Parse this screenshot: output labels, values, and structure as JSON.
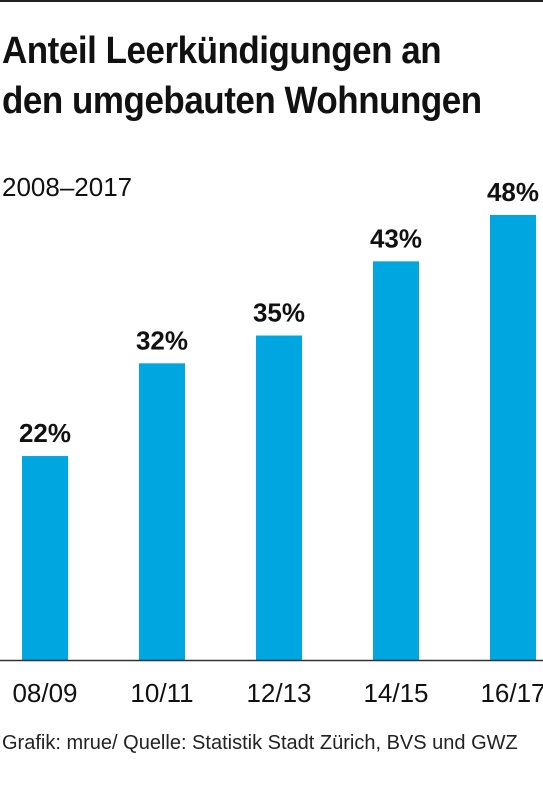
{
  "title": "Anteil Leerkündigungen an den umgebauten Wohnungen",
  "subtitle": "2008–2017",
  "footer": "Grafik: mrue/ Quelle: Statistik Stadt Zürich, BVS und GWZ",
  "colors": {
    "bar": "#00a6e0",
    "baseline": "#333333",
    "text": "#111111"
  },
  "chart_data": {
    "type": "bar",
    "title": "Anteil Leerkündigungen an den umgebauten Wohnungen",
    "subtitle": "2008–2017",
    "categories": [
      "08/09",
      "10/11",
      "12/13",
      "14/15",
      "16/17"
    ],
    "values": [
      22,
      32,
      35,
      43,
      48
    ],
    "value_labels": [
      "22%",
      "32%",
      "35%",
      "43%",
      "48%"
    ],
    "unit": "%",
    "ylim": [
      0,
      48
    ],
    "grid": false,
    "legend": "none"
  }
}
